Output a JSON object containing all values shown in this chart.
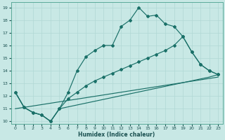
{
  "xlabel": "Humidex (Indice chaleur)",
  "bg_color": "#c8e8e5",
  "line_color": "#1a7068",
  "grid_color": "#b0d8d4",
  "xlim": [
    -0.5,
    23.5
  ],
  "ylim": [
    9.8,
    19.4
  ],
  "xticks": [
    0,
    1,
    2,
    3,
    4,
    5,
    6,
    7,
    8,
    9,
    10,
    11,
    12,
    13,
    14,
    15,
    16,
    17,
    18,
    19,
    20,
    21,
    22,
    23
  ],
  "yticks": [
    10,
    11,
    12,
    13,
    14,
    15,
    16,
    17,
    18,
    19
  ],
  "line1_x": [
    0,
    1,
    2,
    3,
    4,
    5,
    6,
    7,
    8,
    9,
    10,
    11,
    12,
    13,
    14,
    15,
    16,
    17,
    18,
    19,
    20,
    21,
    22,
    23
  ],
  "line1_y": [
    12.3,
    11.1,
    10.7,
    10.5,
    10.0,
    11.0,
    12.3,
    14.0,
    15.1,
    15.6,
    16.0,
    16.0,
    17.5,
    18.0,
    19.0,
    18.3,
    18.4,
    17.7,
    17.5,
    16.7,
    15.5,
    14.5,
    14.0,
    13.7
  ],
  "line2_x": [
    0,
    1,
    2,
    3,
    4,
    5,
    6,
    7,
    8,
    9,
    10,
    11,
    12,
    13,
    14,
    15,
    16,
    17,
    18,
    19,
    20,
    21,
    22,
    23
  ],
  "line2_y": [
    12.3,
    11.1,
    10.7,
    10.5,
    10.0,
    11.0,
    11.8,
    12.3,
    12.8,
    13.2,
    13.5,
    13.8,
    14.1,
    14.4,
    14.7,
    15.0,
    15.3,
    15.6,
    16.0,
    16.7,
    15.5,
    14.5,
    14.0,
    13.7
  ],
  "line3_x": [
    0,
    1,
    2,
    3,
    4,
    5,
    22,
    23
  ],
  "line3_y": [
    12.3,
    11.1,
    10.7,
    10.5,
    10.0,
    11.0,
    13.5,
    13.7
  ],
  "line4_x": [
    0,
    23
  ],
  "line4_y": [
    11.0,
    13.5
  ]
}
